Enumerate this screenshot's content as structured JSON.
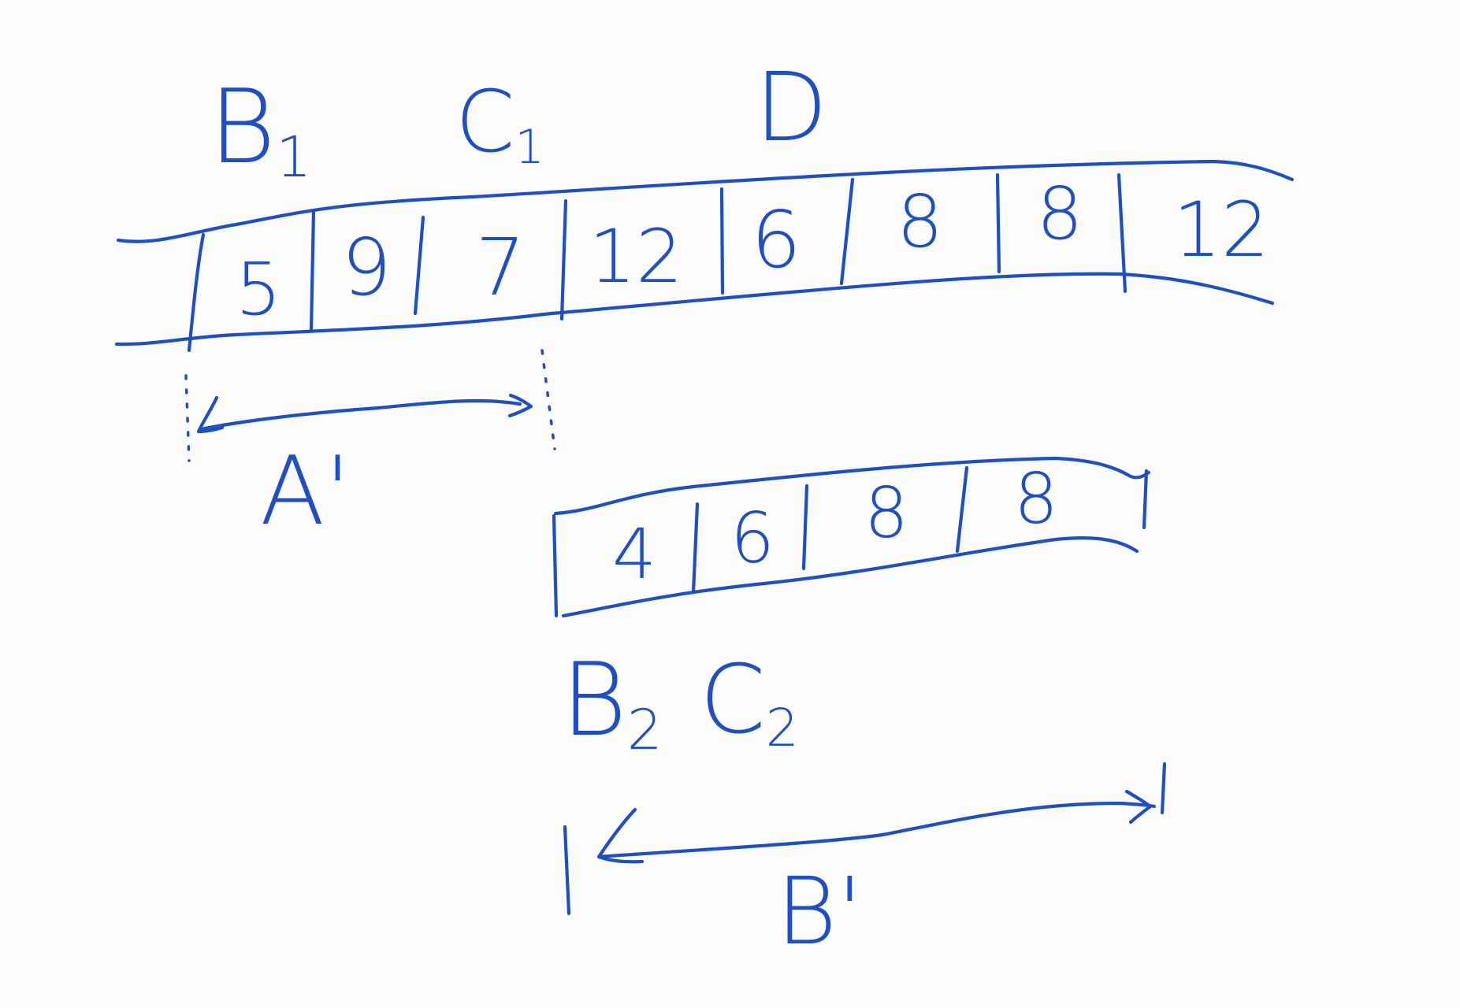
{
  "colors": {
    "ink": "#1f4fc0",
    "board": "#fbfcfb"
  },
  "top_labels": {
    "b1": {
      "letter": "B",
      "sub": "1"
    },
    "c1": {
      "letter": "C",
      "sub": "1"
    },
    "d": "D"
  },
  "top_array": [
    "5",
    "9",
    "7",
    "12",
    "6",
    "8",
    "8",
    "12"
  ],
  "span_a_label": "A'",
  "bottom_array": [
    "4",
    "6",
    "8",
    "8"
  ],
  "bottom_labels": {
    "b2": {
      "letter": "B",
      "sub": "2"
    },
    "c2": {
      "letter": "C",
      "sub": "2"
    }
  },
  "span_b_label": "B'"
}
